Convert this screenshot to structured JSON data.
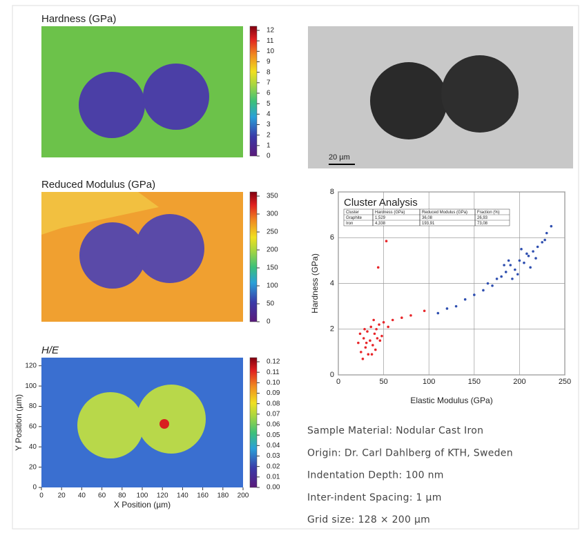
{
  "maps": [
    {
      "title": "Hardness (GPa)",
      "ticks": [
        0,
        1,
        2,
        3,
        4,
        5,
        6,
        7,
        8,
        9,
        10,
        11,
        12
      ]
    },
    {
      "title": "Reduced Modulus (GPa)",
      "ticks": [
        0,
        50,
        100,
        150,
        200,
        250,
        300,
        350
      ]
    },
    {
      "title": "H/E",
      "ticks": [
        {
          "value": 0,
          "label": "0.00"
        },
        0.01,
        0.02,
        0.03,
        0.04,
        0.05,
        0.06,
        0.07,
        0.08,
        0.09,
        {
          "value": 0.1,
          "label": "0.10"
        },
        0.11,
        0.12
      ],
      "xlabel": "X Position (µm)",
      "ylabel": "Y Position (µm)",
      "xlim": [
        0,
        200
      ],
      "ylim": [
        0,
        128
      ],
      "xticks": [
        0,
        20,
        40,
        60,
        80,
        100,
        120,
        140,
        160,
        180,
        200
      ],
      "yticks": [
        0,
        20,
        40,
        60,
        80,
        100,
        120
      ]
    }
  ],
  "micrograph": {
    "scale_bar": "20 µm"
  },
  "chart_data": {
    "type": "scatter",
    "title": "Cluster Analysis",
    "xlabel": "Elastic Modulus (GPa)",
    "ylabel": "Hardness (GPa)",
    "xlim": [
      0,
      250
    ],
    "ylim": [
      0,
      8
    ],
    "xticks": [
      0,
      50,
      100,
      150,
      200,
      250
    ],
    "yticks": [
      0,
      2,
      4,
      6,
      8
    ],
    "grid": true,
    "table": {
      "header": [
        "Cluster",
        "Hardness (GPa)",
        "Reduced Modulus (GPa)",
        "Fraction (%)"
      ],
      "rows": [
        [
          "Graphite",
          "1,529",
          "36,08",
          "26,93"
        ],
        [
          "Iron",
          "4,338",
          "193,91",
          "73,08"
        ]
      ]
    },
    "series": [
      {
        "color": "#e8262a",
        "x": [
          30,
          35,
          40,
          25,
          28,
          42,
          38,
          45,
          33,
          22,
          48,
          36,
          27,
          41,
          32,
          50,
          55,
          60,
          70,
          80,
          95,
          44,
          53,
          24,
          39,
          31,
          46,
          29,
          37,
          43
        ],
        "values": [
          1.2,
          1.5,
          1.8,
          1.0,
          1.6,
          2.0,
          1.3,
          2.2,
          0.9,
          1.4,
          1.7,
          2.1,
          0.7,
          1.1,
          1.9,
          2.3,
          2.1,
          2.4,
          2.5,
          2.6,
          2.8,
          4.7,
          5.85,
          1.8,
          2.4,
          1.4,
          1.5,
          2.0,
          0.9,
          1.6
        ]
      },
      {
        "color": "#2f4fb0",
        "x": [
          190,
          200,
          210,
          185,
          195,
          205,
          215,
          220,
          180,
          175,
          225,
          230,
          235,
          198,
          208,
          188,
          170,
          160,
          150,
          140,
          130,
          120,
          110,
          212,
          202,
          192,
          218,
          228,
          183,
          165
        ],
        "values": [
          4.8,
          5.0,
          5.2,
          4.5,
          4.6,
          4.9,
          5.4,
          5.6,
          4.3,
          4.2,
          5.8,
          6.2,
          6.5,
          4.4,
          5.3,
          5.0,
          3.9,
          3.7,
          3.5,
          3.3,
          3.0,
          2.9,
          2.7,
          4.7,
          5.5,
          4.2,
          5.1,
          5.9,
          4.8,
          4.0
        ]
      }
    ]
  },
  "info": [
    "Sample Material: Nodular Cast Iron",
    "Origin: Dr. Carl Dahlberg of KTH, Sweden",
    "Indentation Depth: 100 nm",
    "Inter-indent Spacing: 1 µm",
    "Grid size: 128 × 200 µm"
  ]
}
